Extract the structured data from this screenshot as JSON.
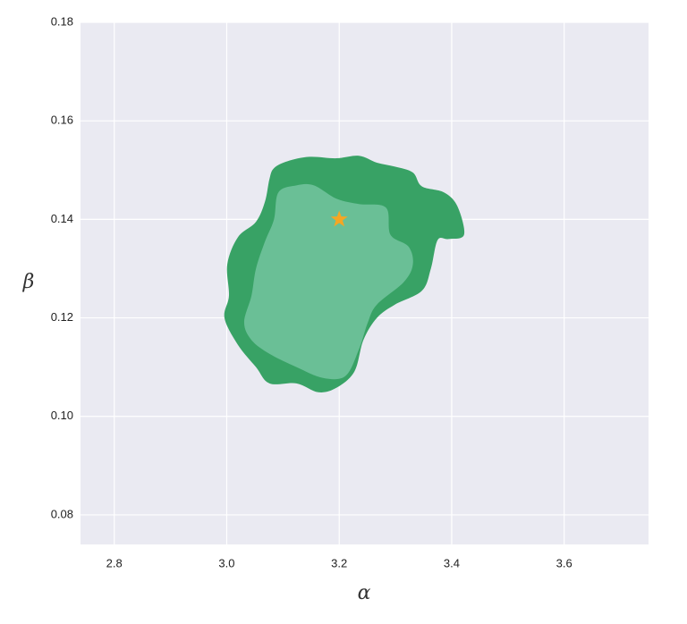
{
  "chart_data": {
    "type": "contour",
    "xlabel": "α",
    "ylabel": "β",
    "xlim": [
      2.74,
      3.75
    ],
    "ylim": [
      0.074,
      0.18
    ],
    "xticks": [
      2.8,
      {
        "value": 3,
        "label": "3.0"
      },
      3.2,
      3.4,
      3.6
    ],
    "yticks": [
      0.08,
      {
        "value": 0.1,
        "label": "0.10"
      },
      0.12,
      0.14,
      0.16,
      0.18
    ],
    "grid": true,
    "contours": [
      {
        "color": "#38a265",
        "x": [
          3.084,
          3.108,
          3.147,
          3.195,
          3.235,
          3.267,
          3.299,
          3.331,
          3.347,
          3.386,
          3.41,
          3.422,
          3.394,
          3.375,
          3.363,
          3.347,
          3.299,
          3.267,
          3.243,
          3.227,
          3.195,
          3.163,
          3.124,
          3.076,
          3.052,
          3.02,
          2.996,
          3.004,
          3.001,
          3.02,
          3.052,
          3.068,
          3.076
        ],
        "y": [
          0.1504,
          0.1518,
          0.1527,
          0.1524,
          0.1529,
          0.1515,
          0.1507,
          0.1495,
          0.1467,
          0.1455,
          0.1427,
          0.1369,
          0.136,
          0.1358,
          0.13,
          0.1255,
          0.1227,
          0.12,
          0.1155,
          0.1091,
          0.1058,
          0.1049,
          0.1067,
          0.1067,
          0.11,
          0.1145,
          0.12,
          0.1245,
          0.1309,
          0.1364,
          0.1395,
          0.1436,
          0.1482
        ]
      },
      {
        "color": "#6abf96",
        "x": [
          3.092,
          3.124,
          3.155,
          3.195,
          3.235,
          3.283,
          3.291,
          3.323,
          3.331,
          3.315,
          3.267,
          3.251,
          3.235,
          3.211,
          3.171,
          3.124,
          3.076,
          3.044,
          3.031,
          3.044,
          3.052,
          3.068,
          3.084
        ],
        "y": [
          0.1455,
          0.1469,
          0.1469,
          0.1442,
          0.1431,
          0.1424,
          0.1369,
          0.1345,
          0.1309,
          0.1273,
          0.1227,
          0.1191,
          0.1136,
          0.1082,
          0.1078,
          0.11,
          0.1127,
          0.1155,
          0.1191,
          0.1245,
          0.13,
          0.1355,
          0.14
        ]
      }
    ],
    "marker": {
      "x": 3.2,
      "y": 0.14,
      "color": "#f5a623"
    }
  }
}
